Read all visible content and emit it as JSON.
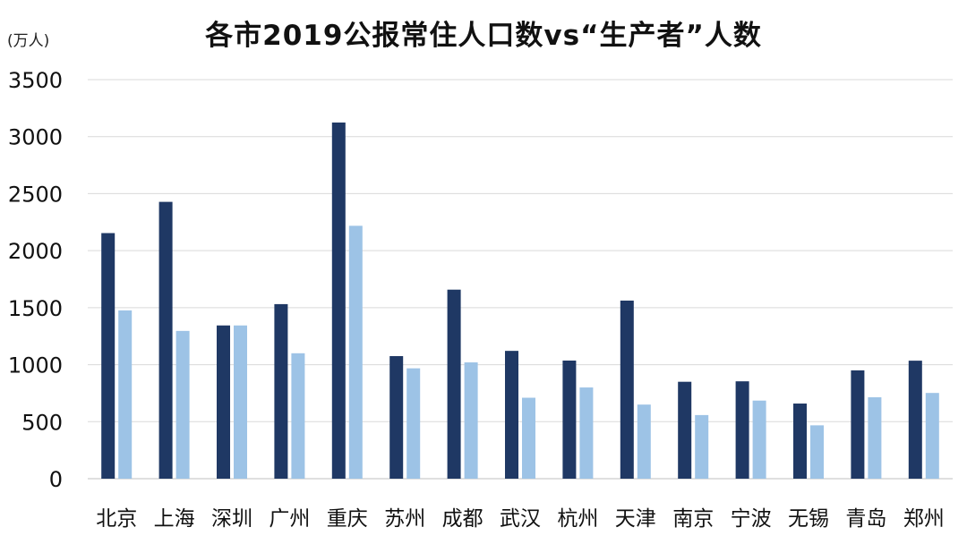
{
  "chart_data": {
    "type": "bar",
    "title": "各市2019公报常住人口数vs“生产者”人数",
    "y_unit": "(万人)",
    "categories": [
      "北京",
      "上海",
      "深圳",
      "广州",
      "重庆",
      "苏州",
      "成都",
      "武汉",
      "杭州",
      "天津",
      "南京",
      "宁波",
      "无锡",
      "青岛",
      "郑州"
    ],
    "series": [
      {
        "values": [
          2154,
          2428,
          1344,
          1531,
          3124,
          1075,
          1658,
          1121,
          1036,
          1562,
          850,
          854,
          659,
          950,
          1035
        ],
        "color": "#1f3864"
      },
      {
        "values": [
          1476,
          1296,
          1344,
          1100,
          2218,
          968,
          1020,
          710,
          800,
          650,
          558,
          685,
          468,
          714,
          752
        ],
        "color": "#9dc3e6"
      }
    ],
    "ylim": [
      0,
      3500
    ],
    "yticks": [
      0,
      500,
      1000,
      1500,
      2000,
      2500,
      3000,
      3500
    ],
    "grid": true,
    "legend": "none"
  }
}
